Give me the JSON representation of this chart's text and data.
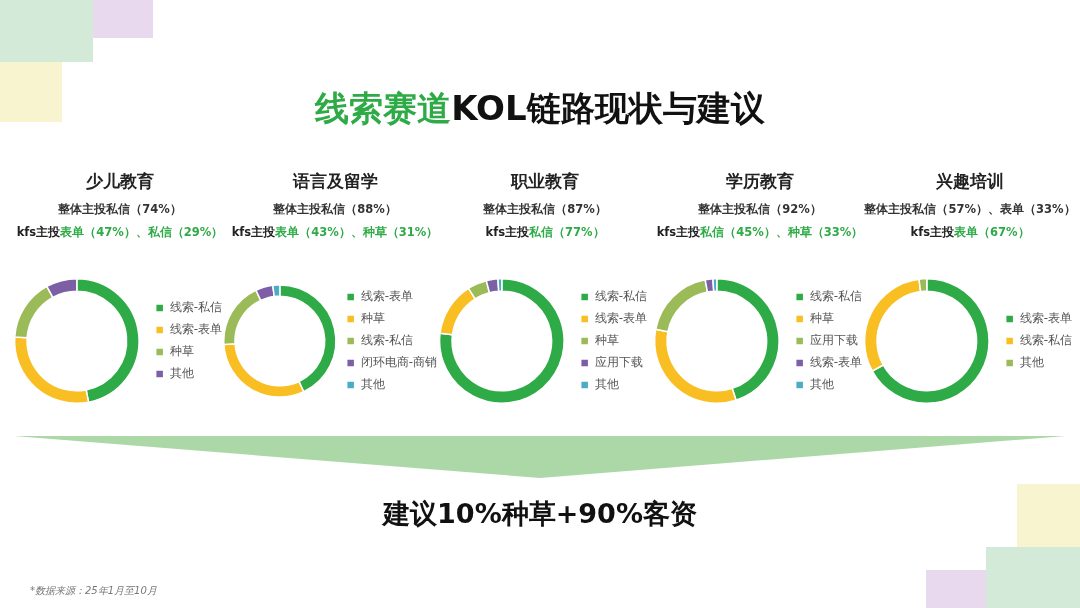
{
  "chart_data": [
    {
      "type": "other",
      "title": "线索赛道KOL链路现状与建议"
    },
    {
      "type": "donut",
      "title": "少儿教育",
      "subtitle": "整体主投私信（74%）",
      "annotations": [
        "kfs主投表单（47%）、私信（29%）"
      ],
      "legend": "right",
      "categories": [
        "线索-私信",
        "线索-表单",
        "种草",
        "其他"
      ],
      "values": [
        47,
        29,
        16,
        8
      ],
      "colors": [
        "#2eaa46",
        "#f8be22",
        "#9bbb59",
        "#7d5fa6"
      ]
    },
    {
      "type": "donut",
      "title": "语言及留学",
      "subtitle": "整体主投私信（88%）",
      "annotations": [
        "kfs主投表单（43%）、种草（31%）"
      ],
      "legend": "right",
      "categories": [
        "线索-表单",
        "种草",
        "线索-私信",
        "闭环电商-商销",
        "其他"
      ],
      "values": [
        43,
        31,
        19,
        5,
        2
      ],
      "colors": [
        "#2eaa46",
        "#f8be22",
        "#9bbb59",
        "#7d5fa6",
        "#4bacc6"
      ]
    },
    {
      "type": "donut",
      "title": "职业教育",
      "subtitle": "整体主投私信（87%）",
      "annotations": [
        "kfs主投私信（77%）"
      ],
      "legend": "right",
      "categories": [
        "线索-私信",
        "线索-表单",
        "种草",
        "应用下载",
        "其他"
      ],
      "values": [
        77,
        14,
        5,
        3,
        1
      ],
      "colors": [
        "#2eaa46",
        "#f8be22",
        "#9bbb59",
        "#7d5fa6",
        "#4bacc6"
      ]
    },
    {
      "type": "donut",
      "title": "学历教育",
      "subtitle": "整体主投私信（92%）",
      "annotations": [
        "kfs主投私信（45%）、种草（33%）"
      ],
      "legend": "right",
      "categories": [
        "线索-私信",
        "种草",
        "应用下载",
        "线索-表单",
        "其他"
      ],
      "values": [
        45,
        33,
        19,
        2,
        1
      ],
      "colors": [
        "#2eaa46",
        "#f8be22",
        "#9bbb59",
        "#7d5fa6",
        "#4bacc6"
      ]
    },
    {
      "type": "donut",
      "title": "兴趣培训",
      "subtitle": "整体主投私信（57%）、表单（33%）",
      "annotations": [
        "kfs主投表单（67%）"
      ],
      "legend": "right",
      "categories": [
        "线索-表单",
        "线索-私信",
        "其他"
      ],
      "values": [
        67,
        31,
        2
      ],
      "colors": [
        "#2eaa46",
        "#f8be22",
        "#9bbb59"
      ]
    },
    {
      "type": "other",
      "annotations": [
        "建议10%种草+90%客资",
        "*数据来源：25年1月至10月"
      ]
    }
  ]
}
